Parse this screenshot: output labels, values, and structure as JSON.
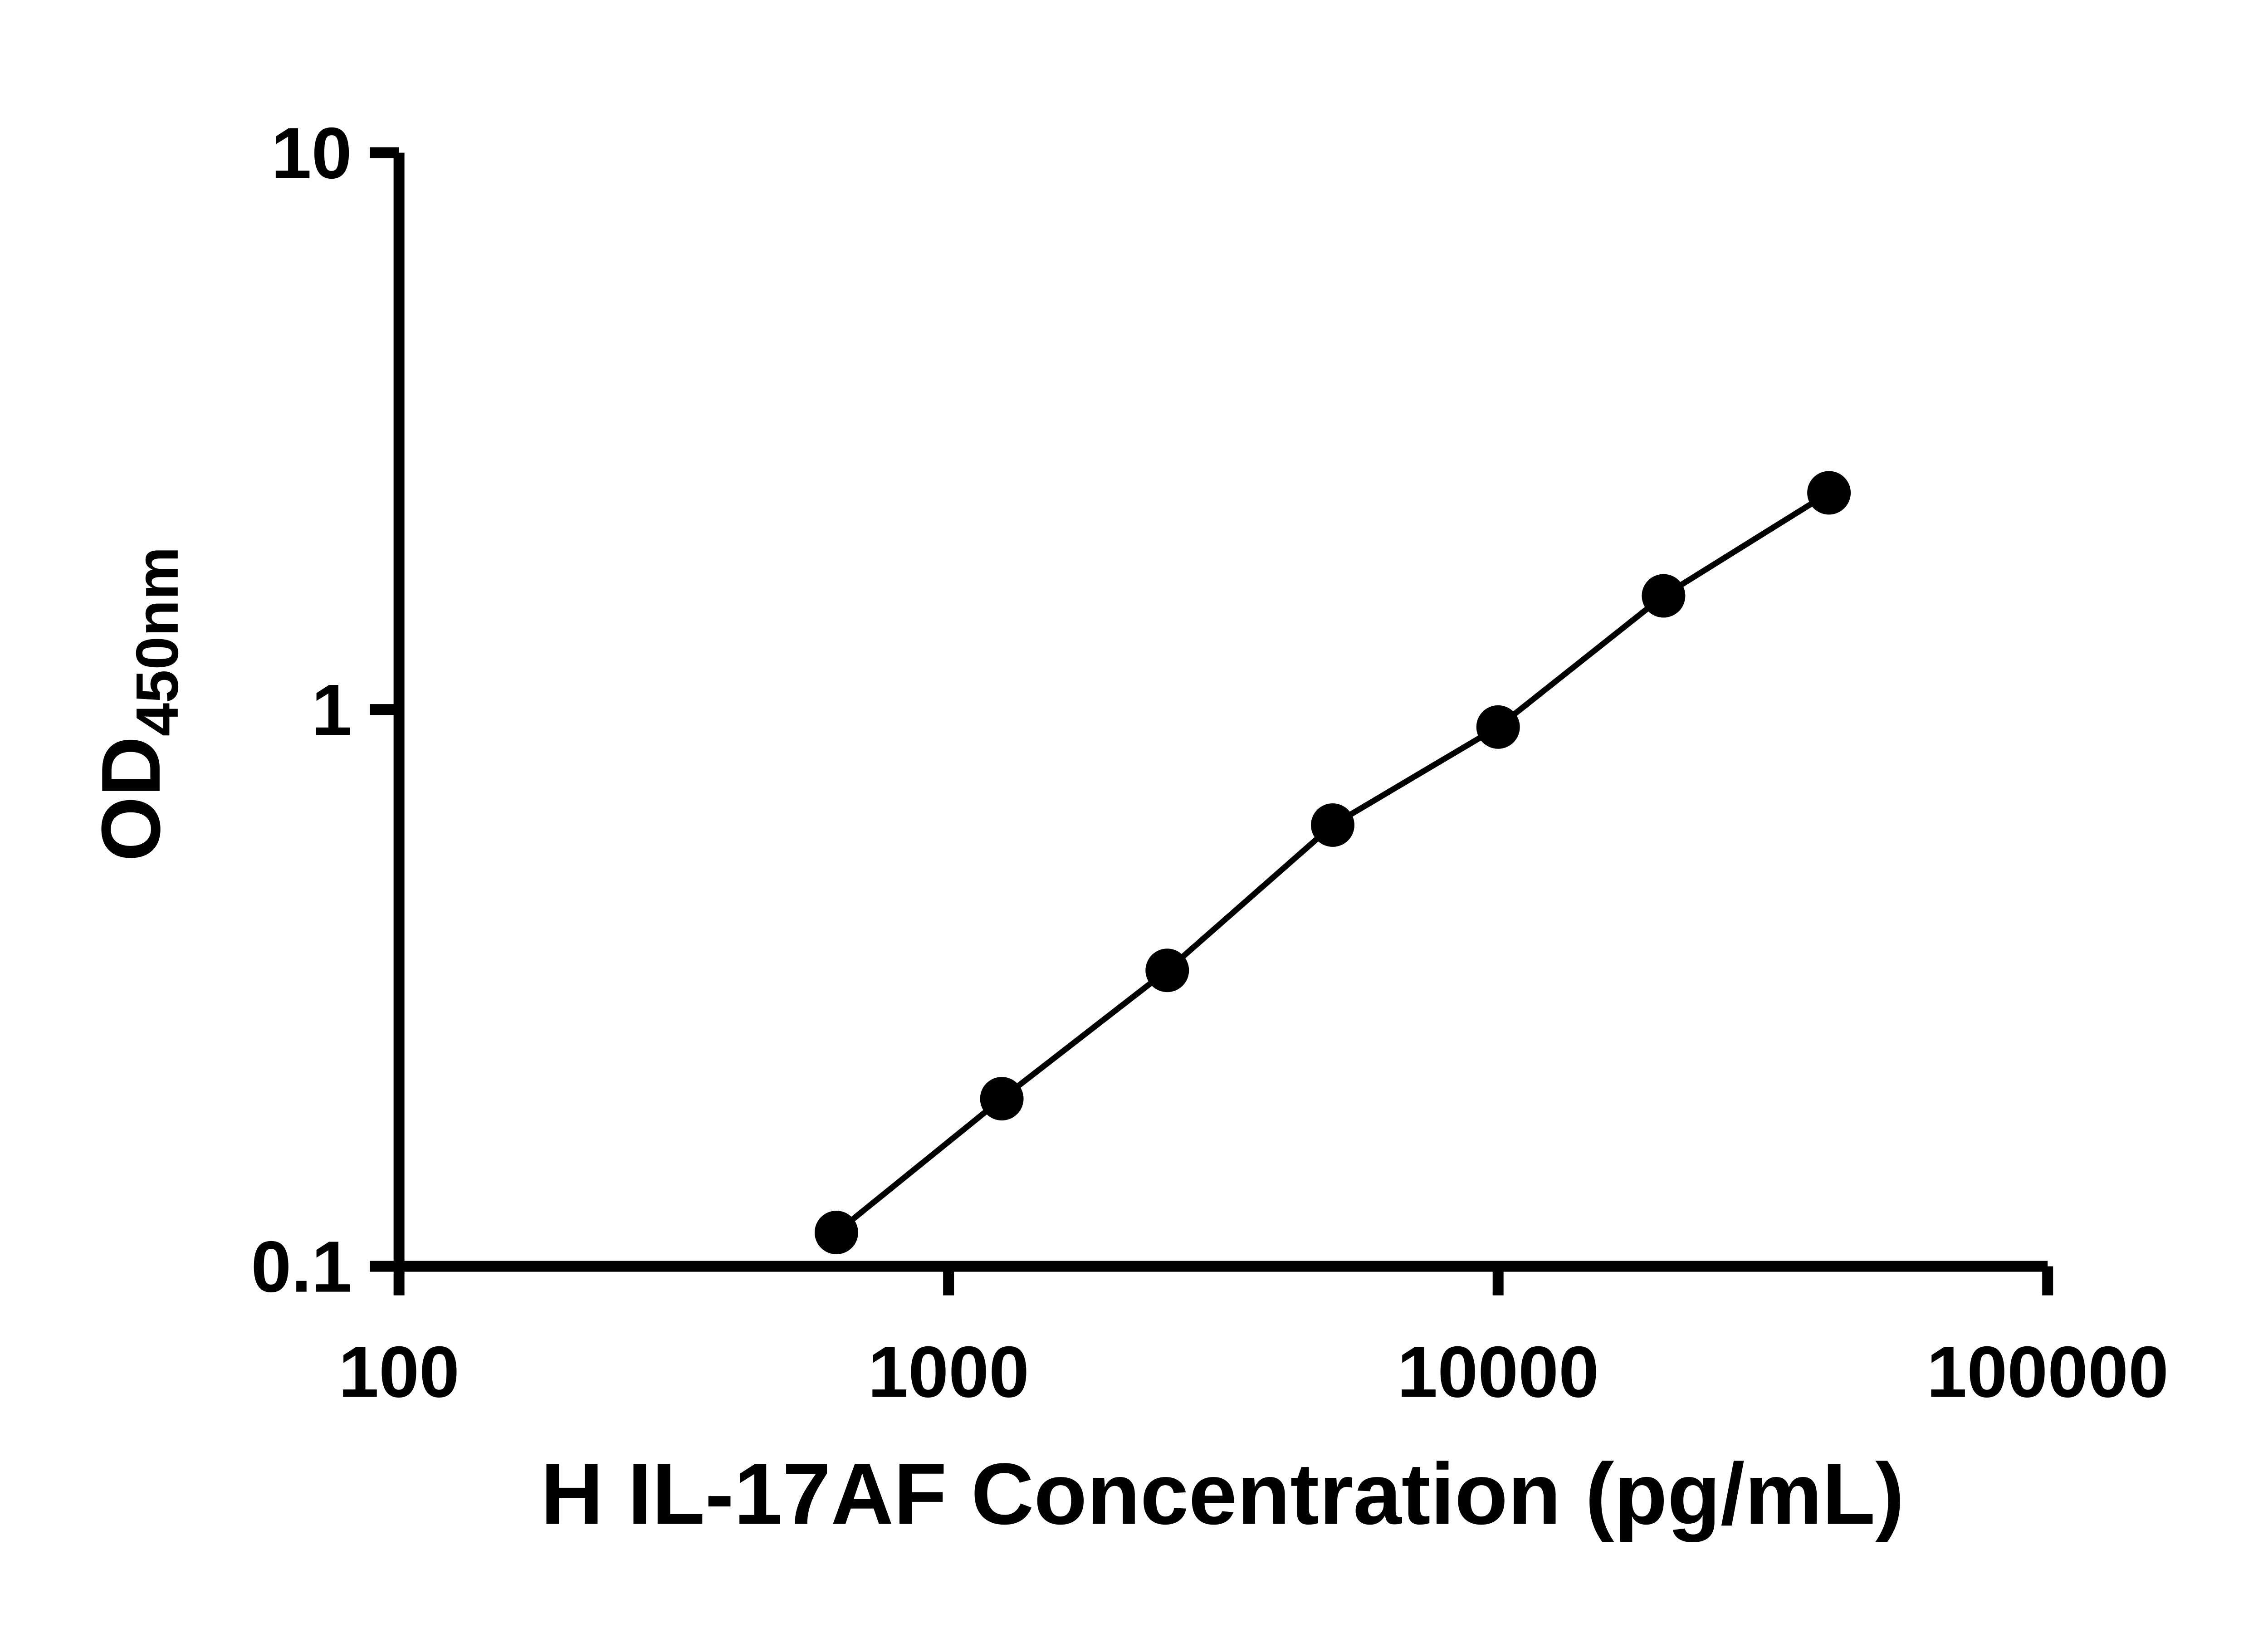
{
  "page": {
    "background": "#ffffff"
  },
  "chart_data": {
    "type": "scatter",
    "subtype": "log-log standard curve with connecting line",
    "title": "",
    "xlabel": "H IL-17AF Concentration (pg/mL)",
    "ylabel_main": "OD",
    "ylabel_sub": "450nm",
    "x": [
      625,
      1250,
      2500,
      5000,
      10000,
      20000,
      40000
    ],
    "y": [
      0.115,
      0.2,
      0.34,
      0.62,
      0.93,
      1.6,
      2.45
    ],
    "xscale": "log",
    "yscale": "log",
    "xlim": [
      100,
      100000
    ],
    "ylim": [
      0.1,
      10
    ],
    "x_ticks": [
      100,
      1000,
      10000,
      100000
    ],
    "x_tick_labels": [
      "100",
      "1000",
      "10000",
      "100000"
    ],
    "y_ticks": [
      0.1,
      1,
      10
    ],
    "y_tick_labels": [
      "0.1",
      "1",
      "10"
    ],
    "grid": "off",
    "legend": "none",
    "axis_color": "#000000",
    "line_color": "#000000",
    "marker_color": "#000000",
    "marker_shape": "filled-circle"
  }
}
